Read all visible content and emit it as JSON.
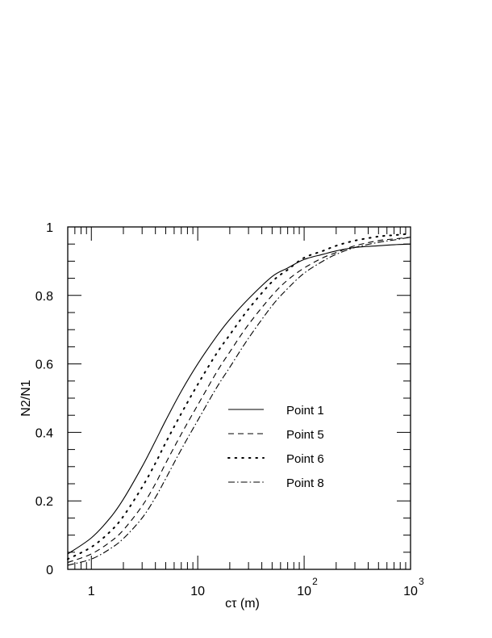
{
  "chart_data": {
    "type": "line",
    "title": "",
    "xlabel": "cτ (m)",
    "ylabel": "N2/N1",
    "x_scale": "log",
    "xlim": [
      0.6,
      1000
    ],
    "ylim": [
      0,
      1
    ],
    "grid": false,
    "legend_position": "lower-right",
    "x_ticks": [
      {
        "value": 1,
        "label": "1",
        "exp": ""
      },
      {
        "value": 10,
        "label": "10",
        "exp": ""
      },
      {
        "value": 100,
        "label": "10",
        "exp": "2"
      },
      {
        "value": 1000,
        "label": "10",
        "exp": "3"
      }
    ],
    "y_ticks": [
      {
        "value": 0,
        "label": "0"
      },
      {
        "value": 0.2,
        "label": "0.2"
      },
      {
        "value": 0.4,
        "label": "0.4"
      },
      {
        "value": 0.6,
        "label": "0.6"
      },
      {
        "value": 0.8,
        "label": "0.8"
      },
      {
        "value": 1,
        "label": "1"
      }
    ],
    "series": [
      {
        "name": "Point 1",
        "style": "solid",
        "x": [
          0.6,
          1,
          1.5,
          2,
          3,
          4,
          5,
          7,
          10,
          15,
          20,
          30,
          50,
          70,
          100,
          150,
          200,
          300,
          500,
          700,
          1000
        ],
        "y": [
          0.045,
          0.092,
          0.15,
          0.205,
          0.3,
          0.375,
          0.435,
          0.52,
          0.6,
          0.68,
          0.73,
          0.79,
          0.855,
          0.88,
          0.905,
          0.92,
          0.93,
          0.94,
          0.945,
          0.948,
          0.95
        ]
      },
      {
        "name": "Point 5",
        "style": "dashed",
        "x": [
          0.6,
          1,
          1.5,
          2,
          3,
          4,
          5,
          7,
          10,
          15,
          20,
          30,
          50,
          70,
          100,
          150,
          200,
          300,
          500,
          700,
          1000
        ],
        "y": [
          0.02,
          0.045,
          0.08,
          0.115,
          0.185,
          0.25,
          0.31,
          0.395,
          0.48,
          0.575,
          0.635,
          0.715,
          0.8,
          0.845,
          0.88,
          0.91,
          0.925,
          0.945,
          0.96,
          0.965,
          0.97
        ]
      },
      {
        "name": "Point 6",
        "style": "dotted",
        "x": [
          0.6,
          1,
          1.5,
          2,
          3,
          4,
          5,
          7,
          10,
          15,
          20,
          30,
          50,
          70,
          100,
          150,
          200,
          300,
          500,
          700,
          1000
        ],
        "y": [
          0.03,
          0.065,
          0.11,
          0.155,
          0.24,
          0.31,
          0.37,
          0.455,
          0.54,
          0.63,
          0.685,
          0.76,
          0.84,
          0.875,
          0.91,
          0.93,
          0.945,
          0.96,
          0.972,
          0.976,
          0.98
        ]
      },
      {
        "name": "Point 8",
        "style": "dashdot",
        "x": [
          0.6,
          1,
          1.5,
          2,
          3,
          4,
          5,
          7,
          10,
          15,
          20,
          30,
          50,
          70,
          100,
          150,
          200,
          300,
          500,
          700,
          1000
        ],
        "y": [
          0.012,
          0.03,
          0.06,
          0.09,
          0.15,
          0.21,
          0.265,
          0.35,
          0.435,
          0.53,
          0.59,
          0.675,
          0.77,
          0.82,
          0.865,
          0.9,
          0.92,
          0.94,
          0.955,
          0.962,
          0.97
        ]
      }
    ]
  }
}
